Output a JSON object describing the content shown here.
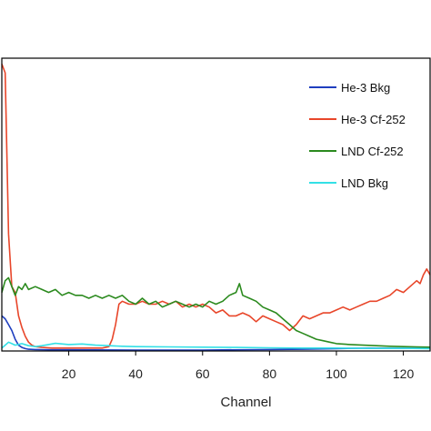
{
  "chart_data": {
    "type": "line",
    "title": "",
    "xlabel": "Channel",
    "ylabel": "",
    "xlim": [
      0,
      128
    ],
    "ylim": [
      0,
      100
    ],
    "x_ticks": [
      20,
      40,
      60,
      80,
      100,
      120
    ],
    "y_ticks_labeled": false,
    "grid": false,
    "legend_position": "top-right",
    "series": [
      {
        "name": "He-3 Bkg",
        "color": "#1f3fbf",
        "x": [
          0,
          1,
          2,
          3,
          4,
          5,
          6,
          7,
          8,
          10,
          14,
          20,
          40,
          60,
          80,
          90,
          100,
          110,
          120,
          128
        ],
        "y": [
          12,
          11,
          9,
          7,
          4,
          2,
          1.2,
          0.8,
          0.6,
          0.5,
          0.4,
          0.4,
          0.3,
          0.3,
          0.5,
          0.6,
          0.8,
          1.0,
          0.9,
          1.0
        ]
      },
      {
        "name": "He-3 Cf-252",
        "color": "#e8462a",
        "x": [
          0,
          1,
          2,
          3,
          4,
          5,
          6,
          7,
          8,
          9,
          10,
          12,
          15,
          20,
          25,
          30,
          32,
          33,
          34,
          35,
          36,
          38,
          40,
          42,
          44,
          46,
          48,
          50,
          52,
          54,
          56,
          58,
          60,
          62,
          64,
          66,
          68,
          70,
          72,
          74,
          76,
          78,
          80,
          82,
          84,
          86,
          88,
          90,
          92,
          94,
          96,
          98,
          100,
          102,
          104,
          106,
          108,
          110,
          112,
          114,
          116,
          118,
          120,
          122,
          124,
          125,
          126,
          127,
          128
        ],
        "y": [
          98,
          95,
          40,
          22,
          20,
          12,
          8,
          5,
          3,
          2,
          1.5,
          1.2,
          1,
          1,
          1,
          1,
          1.5,
          4,
          9,
          16,
          17,
          16,
          16,
          17,
          16,
          16,
          17,
          16,
          17,
          15,
          16,
          15,
          16,
          15,
          13,
          14,
          12,
          12,
          13,
          12,
          10,
          12,
          11,
          10,
          9,
          7,
          9,
          12,
          11,
          12,
          13,
          13,
          14,
          15,
          14,
          15,
          16,
          17,
          17,
          18,
          19,
          21,
          20,
          22,
          24,
          23,
          26,
          28,
          26
        ]
      },
      {
        "name": "LND Cf-252",
        "color": "#2b8a1e",
        "x": [
          0,
          1,
          2,
          3,
          4,
          5,
          6,
          7,
          8,
          10,
          12,
          14,
          16,
          18,
          20,
          22,
          24,
          26,
          28,
          30,
          32,
          34,
          36,
          38,
          40,
          42,
          44,
          46,
          48,
          50,
          52,
          54,
          56,
          58,
          60,
          62,
          64,
          66,
          68,
          70,
          71,
          72,
          74,
          76,
          78,
          80,
          82,
          84,
          86,
          88,
          90,
          92,
          94,
          96,
          98,
          100,
          104,
          108,
          112,
          116,
          120,
          124,
          128
        ],
        "y": [
          20,
          24,
          25,
          22,
          19,
          22,
          21,
          23,
          21,
          22,
          21,
          20,
          21,
          19,
          20,
          19,
          19,
          18,
          19,
          18,
          19,
          18,
          19,
          17,
          16,
          18,
          16,
          17,
          15,
          16,
          17,
          16,
          15,
          16,
          15,
          17,
          16,
          17,
          19,
          20,
          23,
          19,
          18,
          17,
          15,
          14,
          13,
          11,
          9,
          7,
          6,
          5,
          4,
          3.5,
          3,
          2.5,
          2.2,
          2,
          1.8,
          1.6,
          1.5,
          1.4,
          1.3
        ]
      },
      {
        "name": "LND Bkg",
        "color": "#33e0e6",
        "x": [
          0,
          1,
          2,
          3,
          4,
          6,
          8,
          10,
          12,
          14,
          16,
          20,
          24,
          28,
          32,
          36,
          40,
          50,
          60,
          70,
          80,
          90,
          100,
          110,
          120,
          128
        ],
        "y": [
          1,
          2,
          3,
          2.5,
          2,
          2.5,
          1.8,
          1.5,
          1.8,
          2.2,
          2.6,
          2.2,
          2.4,
          2,
          1.8,
          1.6,
          1.5,
          1.4,
          1.3,
          1.2,
          1.1,
          1,
          1,
          0.9,
          0.9,
          0.8
        ]
      }
    ]
  }
}
